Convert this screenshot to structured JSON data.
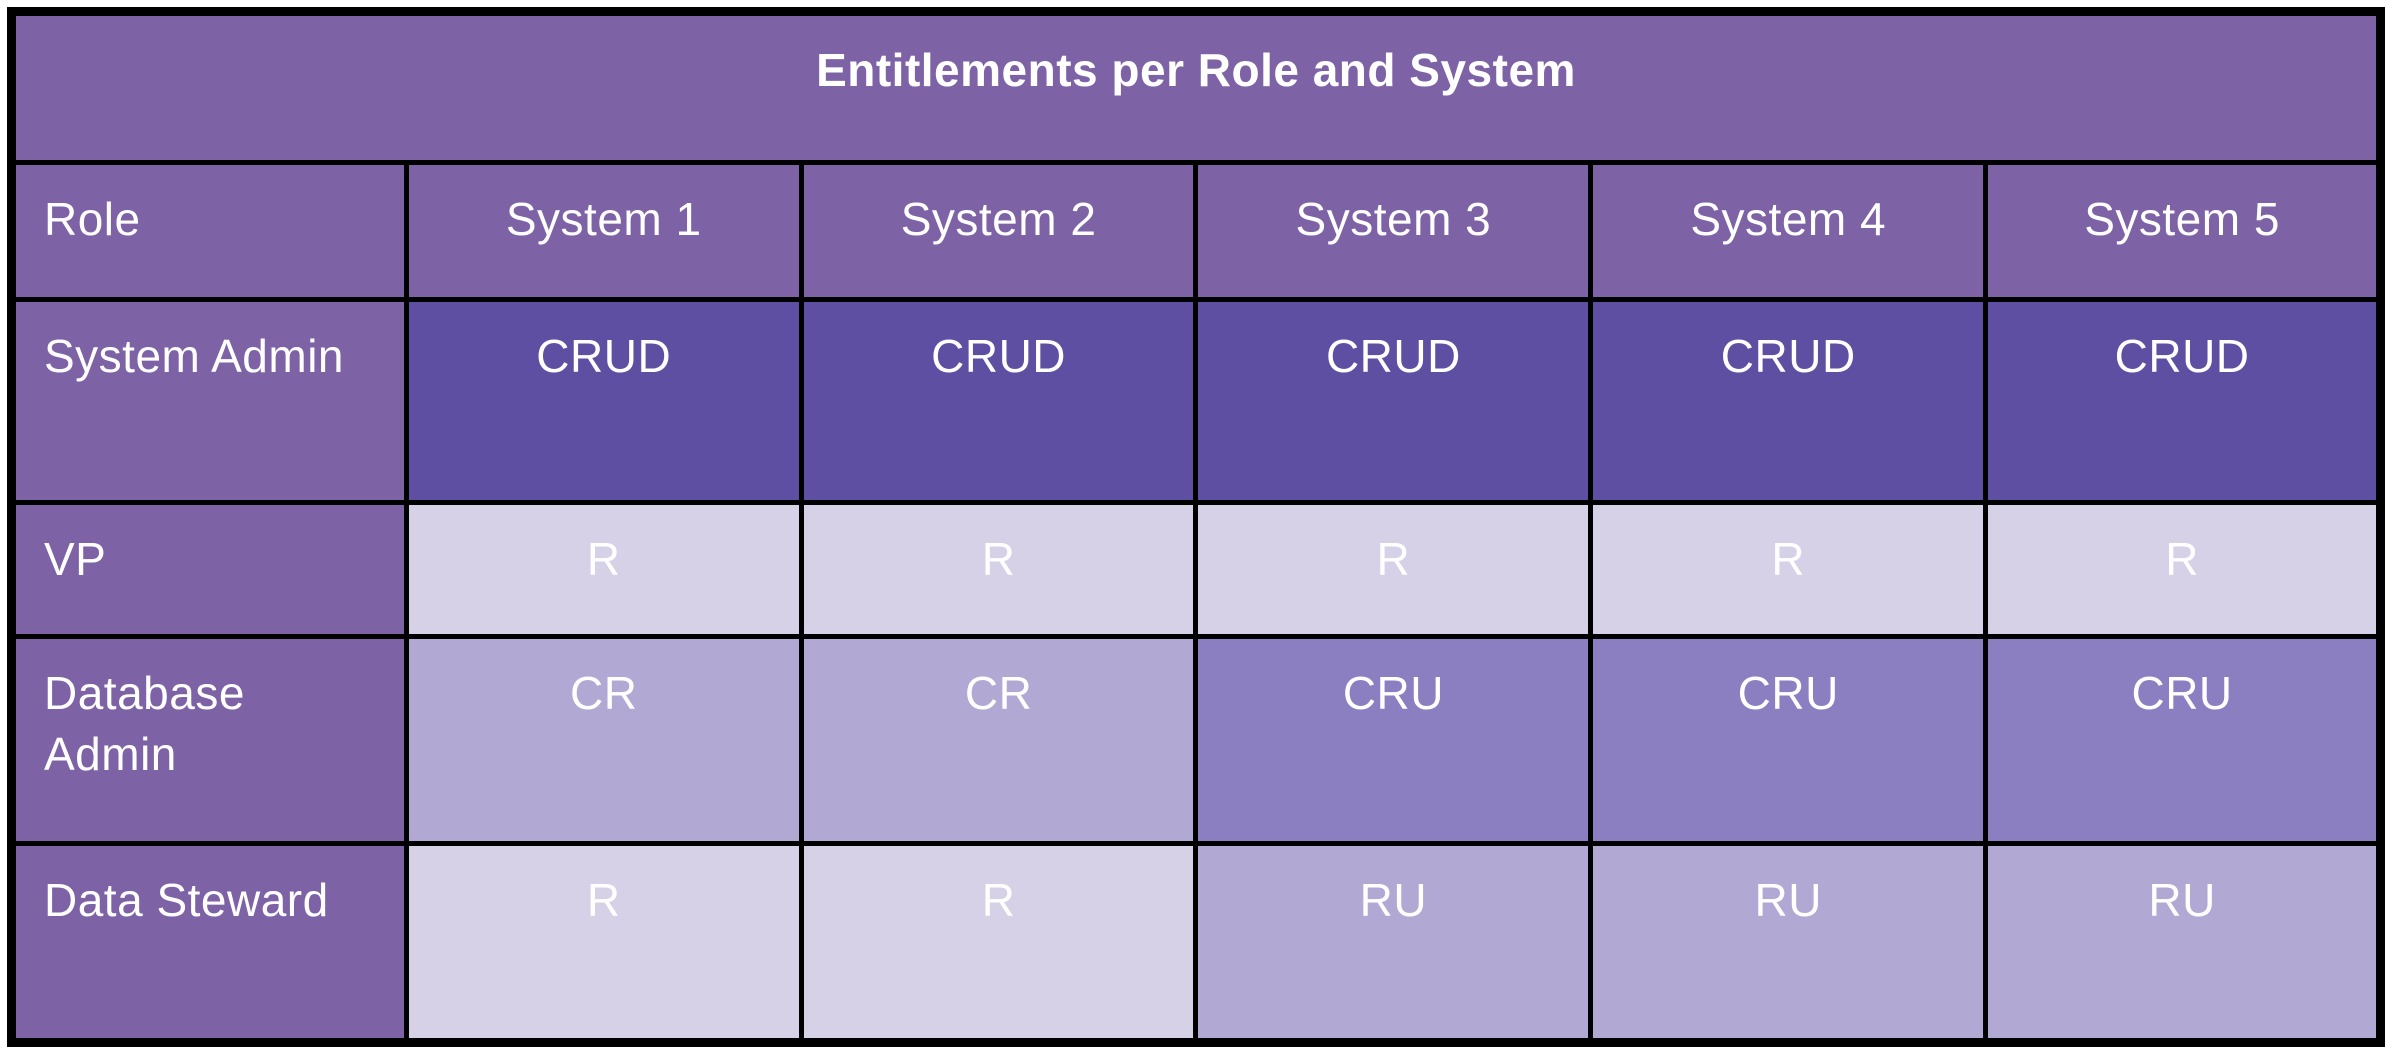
{
  "title": "Entitlements per Role and System",
  "columns": [
    "Role",
    "System 1",
    "System 2",
    "System 3",
    "System 4",
    "System 5"
  ],
  "rows": [
    {
      "role": "System Admin",
      "cells": [
        "CRUD",
        "CRUD",
        "CRUD",
        "CRUD",
        "CRUD"
      ]
    },
    {
      "role": "VP",
      "cells": [
        "R",
        "R",
        "R",
        "R",
        "R"
      ]
    },
    {
      "role": "Database Admin",
      "cells": [
        "CR",
        "CR",
        "CRU",
        "CRU",
        "CRU"
      ]
    },
    {
      "role": "Data Steward",
      "cells": [
        "R",
        "R",
        "RU",
        "RU",
        "RU"
      ]
    }
  ],
  "colors": {
    "header_bg": "#7e62a6",
    "crud_bg": "#5e4fa2",
    "cru_bg": "#8b7ec1",
    "two_perm_bg": "#b2a8d4",
    "single_perm_bg": "#d6d1e7",
    "border": "#000000",
    "text": "#ffffff"
  },
  "chart_data": {
    "type": "table",
    "title": "Entitlements per Role and System",
    "columns": [
      "Role",
      "System 1",
      "System 2",
      "System 3",
      "System 4",
      "System 5"
    ],
    "rows": [
      [
        "System Admin",
        "CRUD",
        "CRUD",
        "CRUD",
        "CRUD",
        "CRUD"
      ],
      [
        "VP",
        "R",
        "R",
        "R",
        "R",
        "R"
      ],
      [
        "Database Admin",
        "CR",
        "CR",
        "CRU",
        "CRU",
        "CRU"
      ],
      [
        "Data Steward",
        "R",
        "R",
        "RU",
        "RU",
        "RU"
      ]
    ],
    "cell_shading_by_value": {
      "CRUD": "#5e4fa2",
      "CRU": "#8b7ec1",
      "CR": "#b2a8d4",
      "RU": "#b2a8d4",
      "R": "#d6d1e7"
    },
    "header_and_role_column_color": "#7e62a6",
    "text_color": "#ffffff",
    "grid_on": true
  }
}
